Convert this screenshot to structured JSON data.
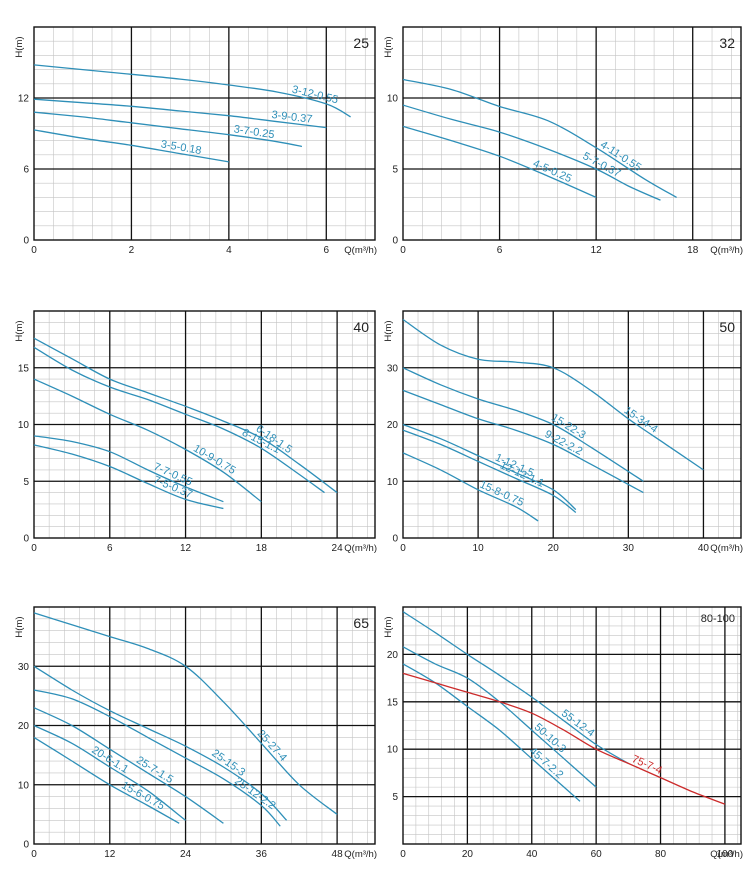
{
  "chart_data": [
    {
      "type": "line",
      "title": "25",
      "xlabel": "Q(m³/h)",
      "ylabel": "H(m)",
      "xlim": [
        0,
        7
      ],
      "ylim": [
        0,
        18
      ],
      "xticks": [
        0,
        2,
        4,
        6
      ],
      "yticks": [
        0,
        6,
        12
      ],
      "grid": true,
      "series": [
        {
          "name": "3-12-0.55",
          "color": "#2e8fb8",
          "x": [
            0,
            1,
            2,
            3,
            4,
            5,
            6,
            6.5
          ],
          "y": [
            14.8,
            14.4,
            14,
            13.6,
            13.1,
            12.5,
            11.5,
            10.4
          ]
        },
        {
          "name": "3-9-0.37",
          "color": "#2e8fb8",
          "x": [
            0,
            1,
            2,
            3,
            4,
            5,
            6
          ],
          "y": [
            11.9,
            11.6,
            11.3,
            10.9,
            10.5,
            10.0,
            9.5
          ]
        },
        {
          "name": "3-7-0.25",
          "color": "#2e8fb8",
          "x": [
            0,
            1,
            2,
            3,
            4,
            5,
            5.5
          ],
          "y": [
            10.8,
            10.4,
            9.9,
            9.4,
            8.9,
            8.3,
            7.9
          ]
        },
        {
          "name": "3-5-0.18",
          "color": "#2e8fb8",
          "x": [
            0,
            1,
            2,
            3,
            4
          ],
          "y": [
            9.3,
            8.6,
            8.0,
            7.3,
            6.6
          ]
        }
      ]
    },
    {
      "type": "line",
      "title": "32",
      "xlabel": "Q(m³/h)",
      "ylabel": "H(m)",
      "xlim": [
        0,
        21
      ],
      "ylim": [
        0,
        15
      ],
      "xticks": [
        0,
        6,
        12,
        18
      ],
      "yticks": [
        0,
        5,
        10
      ],
      "grid": true,
      "series": [
        {
          "name": "4-11-0.55",
          "color": "#2e8fb8",
          "x": [
            0,
            3,
            6,
            9,
            12,
            15,
            17
          ],
          "y": [
            11.3,
            10.6,
            9.4,
            8.4,
            6.5,
            4.3,
            3.0
          ]
        },
        {
          "name": "5-7-0.37",
          "color": "#2e8fb8",
          "x": [
            0,
            3,
            6,
            9,
            12,
            14,
            16
          ],
          "y": [
            9.5,
            8.5,
            7.6,
            6.4,
            5.0,
            3.8,
            2.8
          ]
        },
        {
          "name": "4-5-0.25",
          "color": "#2e8fb8",
          "x": [
            0,
            3,
            6,
            9,
            12
          ],
          "y": [
            8.0,
            7.0,
            5.9,
            4.5,
            3.0
          ]
        }
      ]
    },
    {
      "type": "line",
      "title": "40",
      "xlabel": "Q(m³/h)",
      "ylabel": "H(m)",
      "xlim": [
        0,
        27
      ],
      "ylim": [
        0,
        20
      ],
      "xticks": [
        0,
        6,
        12,
        18,
        24
      ],
      "yticks": [
        0,
        5,
        10,
        15
      ],
      "grid": true,
      "series": [
        {
          "name": "6-18-1.5",
          "color": "#2e8fb8",
          "x": [
            0,
            3,
            6,
            9,
            12,
            15,
            18,
            21,
            24
          ],
          "y": [
            17.6,
            15.8,
            14.0,
            12.8,
            11.6,
            10.3,
            8.8,
            6.5,
            4.0
          ]
        },
        {
          "name": "8-15-1.1",
          "color": "#2e8fb8",
          "x": [
            0,
            3,
            6,
            9,
            12,
            15,
            18,
            21,
            23
          ],
          "y": [
            16.8,
            14.8,
            13.3,
            12.2,
            10.9,
            9.6,
            7.9,
            5.6,
            4.0
          ]
        },
        {
          "name": "10-9-0.75",
          "color": "#2e8fb8",
          "x": [
            0,
            3,
            6,
            9,
            12,
            15,
            18
          ],
          "y": [
            14.0,
            12.5,
            10.9,
            9.5,
            7.8,
            5.8,
            3.2
          ]
        },
        {
          "name": "7-7-0.55",
          "color": "#2e8fb8",
          "x": [
            0,
            3,
            6,
            9,
            12,
            15
          ],
          "y": [
            9.0,
            8.5,
            7.6,
            6.0,
            4.5,
            3.2
          ]
        },
        {
          "name": "7-5-0.37",
          "color": "#2e8fb8",
          "x": [
            0,
            3,
            6,
            9,
            12,
            15
          ],
          "y": [
            8.2,
            7.4,
            6.3,
            4.8,
            3.4,
            2.6
          ]
        }
      ]
    },
    {
      "type": "line",
      "title": "50",
      "xlabel": "Q(m³/h)",
      "ylabel": "H(m)",
      "xlim": [
        0,
        45
      ],
      "ylim": [
        0,
        40
      ],
      "xticks": [
        0,
        10,
        20,
        30,
        40
      ],
      "yticks": [
        0,
        10,
        20,
        30
      ],
      "grid": true,
      "series": [
        {
          "name": "15-34-4",
          "color": "#2e8fb8",
          "x": [
            0,
            5,
            10,
            15,
            20,
            25,
            30,
            35,
            40
          ],
          "y": [
            38.5,
            34.0,
            31.5,
            31.0,
            30.0,
            26.0,
            21.0,
            16.5,
            12.0
          ]
        },
        {
          "name": "15-22-3",
          "color": "#2e8fb8",
          "x": [
            0,
            5,
            10,
            15,
            20,
            25,
            32
          ],
          "y": [
            30.0,
            27.0,
            24.5,
            22.5,
            20.0,
            16.0,
            10.0
          ]
        },
        {
          "name": "9-22-2.2",
          "color": "#2e8fb8",
          "x": [
            0,
            5,
            10,
            15,
            20,
            25,
            32
          ],
          "y": [
            26.0,
            23.5,
            21.0,
            19.0,
            16.5,
            13.0,
            8.0
          ]
        },
        {
          "name": "1-12-1.5",
          "color": "#2e8fb8",
          "x": [
            0,
            5,
            10,
            15,
            20,
            23
          ],
          "y": [
            20.0,
            17.5,
            14.5,
            11.5,
            8.5,
            5.0
          ]
        },
        {
          "name": "12-12-1.1",
          "color": "#2e8fb8",
          "x": [
            0,
            5,
            10,
            15,
            20,
            23
          ],
          "y": [
            19.0,
            16.5,
            13.5,
            10.5,
            7.5,
            4.5
          ]
        },
        {
          "name": "15-8-0.75",
          "color": "#2e8fb8",
          "x": [
            0,
            5,
            10,
            15,
            18
          ],
          "y": [
            15.0,
            12.0,
            8.5,
            5.5,
            3.0
          ]
        }
      ]
    },
    {
      "type": "line",
      "title": "65",
      "xlabel": "Q(m³/h)",
      "ylabel": "H(m)",
      "xlim": [
        0,
        54
      ],
      "ylim": [
        0,
        40
      ],
      "xticks": [
        0,
        12,
        24,
        36,
        48
      ],
      "yticks": [
        0,
        10,
        20,
        30
      ],
      "grid": true,
      "series": [
        {
          "name": "25-27-4",
          "color": "#2e8fb8",
          "x": [
            0,
            6,
            12,
            18,
            24,
            30,
            36,
            42,
            48
          ],
          "y": [
            39.0,
            37.0,
            35.0,
            33.0,
            30.0,
            24.0,
            17.0,
            10.0,
            5.0
          ]
        },
        {
          "name": "25-15-3",
          "color": "#2e8fb8",
          "x": [
            0,
            6,
            12,
            18,
            24,
            30,
            36,
            40
          ],
          "y": [
            30.0,
            26.0,
            22.5,
            19.5,
            16.5,
            13.0,
            8.5,
            4.0
          ]
        },
        {
          "name": "25-12-2.2",
          "color": "#2e8fb8",
          "x": [
            0,
            6,
            12,
            18,
            24,
            30,
            36,
            39
          ],
          "y": [
            26.0,
            24.5,
            21.5,
            18.0,
            14.5,
            11.0,
            6.5,
            3.0
          ]
        },
        {
          "name": "25-7-1.5",
          "color": "#2e8fb8",
          "x": [
            0,
            6,
            12,
            18,
            24,
            30
          ],
          "y": [
            23.0,
            20.0,
            16.0,
            12.0,
            8.0,
            3.5
          ]
        },
        {
          "name": "20-6-1.1",
          "color": "#2e8fb8",
          "x": [
            0,
            6,
            12,
            18,
            24
          ],
          "y": [
            20.0,
            17.0,
            13.0,
            9.0,
            4.0
          ]
        },
        {
          "name": "15-6-0.75",
          "color": "#2e8fb8",
          "x": [
            0,
            6,
            12,
            18,
            23
          ],
          "y": [
            18.0,
            14.0,
            10.0,
            6.5,
            3.5
          ]
        }
      ]
    },
    {
      "type": "line",
      "title": "80-100",
      "xlabel": "Q(m³/h)",
      "ylabel": "H(m)",
      "xlim": [
        0,
        105
      ],
      "ylim": [
        0,
        25
      ],
      "xticks": [
        0,
        20,
        40,
        60,
        80,
        100
      ],
      "yticks": [
        5,
        10,
        15,
        20
      ],
      "grid": true,
      "series": [
        {
          "name": "55-12-4",
          "color": "#2e8fb8",
          "x": [
            0,
            10,
            20,
            30,
            40,
            50,
            60,
            70
          ],
          "y": [
            24.5,
            22.3,
            20.0,
            17.8,
            15.5,
            13.0,
            10.5,
            8.5
          ]
        },
        {
          "name": "50-10-3",
          "color": "#2e8fb8",
          "x": [
            0,
            10,
            20,
            30,
            40,
            50,
            60
          ],
          "y": [
            20.8,
            19.0,
            17.5,
            15.0,
            12.0,
            9.0,
            6.0
          ]
        },
        {
          "name": "45-7-2.2",
          "color": "#2e8fb8",
          "x": [
            0,
            10,
            20,
            30,
            40,
            50,
            55
          ],
          "y": [
            19.0,
            17.0,
            14.5,
            12.0,
            9.0,
            6.0,
            4.5
          ]
        },
        {
          "name": "75-7-4",
          "color": "#cc2b2b",
          "x": [
            0,
            10,
            20,
            30,
            40,
            50,
            60,
            70,
            80,
            90,
            100
          ],
          "y": [
            18.0,
            17.0,
            16.0,
            15.0,
            13.8,
            12.0,
            10.0,
            8.5,
            7.0,
            5.5,
            4.2
          ]
        }
      ]
    }
  ]
}
